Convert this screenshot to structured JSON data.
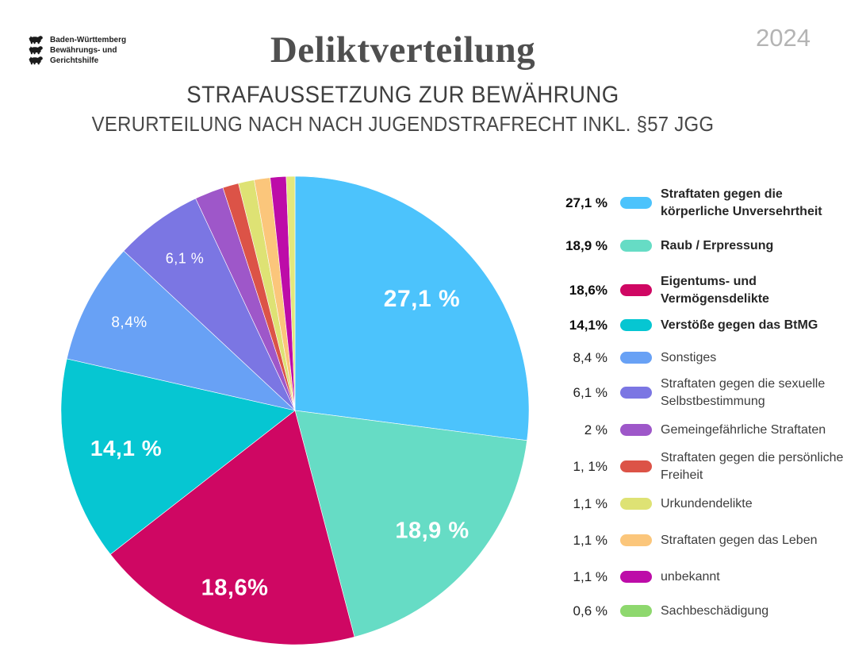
{
  "header": {
    "logo": {
      "icon": "bw-lion-icon",
      "lines": [
        "Baden-Württemberg",
        "Bewährungs- und",
        "Gerichtshilfe"
      ]
    },
    "title": "Deliktverteilung",
    "subtitle1": "STRAFAUSSETZUNG ZUR BEWÄHRUNG",
    "subtitle2": "VERURTEILUNG NACH NACH JUGENDSTRAFRECHT INKL. §57 JGG",
    "year": "2024"
  },
  "chart_data": {
    "type": "pie",
    "title": "Deliktverteilung",
    "unit": "%",
    "start_angle_deg": 0,
    "direction": "clockwise",
    "legend_position": "right",
    "slices": [
      {
        "label": "Straftaten gegen die körperliche Unversehrtheit",
        "value": 27.1,
        "legend_pct": "27,1 %",
        "legend_lines": [
          "Straftaten gegen die",
          "körperliche Unversehrtheit"
        ],
        "pie_label": "27,1 %",
        "color": "#4cc3fc",
        "emphasis": true
      },
      {
        "label": "Raub / Erpressung",
        "value": 18.9,
        "legend_pct": "18,9 %",
        "legend_lines": [
          "Raub / Erpressung"
        ],
        "pie_label": "18,9 %",
        "color": "#66dcc5",
        "emphasis": true
      },
      {
        "label": "Eigentums- und Vermögensdelikte",
        "value": 18.6,
        "legend_pct": "18,6%",
        "legend_lines": [
          "Eigentums- und",
          "Vermögensdelikte"
        ],
        "pie_label": "18,6%",
        "color": "#cf0763",
        "emphasis": true
      },
      {
        "label": "Verstöße gegen das BtMG",
        "value": 14.1,
        "legend_pct": "14,1%",
        "legend_lines": [
          "Verstöße gegen das BtMG"
        ],
        "pie_label": "14,1 %",
        "color": "#06c6d2",
        "emphasis": true
      },
      {
        "label": "Sonstiges",
        "value": 8.4,
        "legend_pct": "8,4 %",
        "legend_lines": [
          "Sonstiges"
        ],
        "pie_label": "8,4%",
        "color": "#68a1f5",
        "emphasis": false
      },
      {
        "label": "Straftaten gegen die sexuelle Selbstbestimmung",
        "value": 6.1,
        "legend_pct": "6,1 %",
        "legend_lines": [
          "Straftaten gegen die sexuelle",
          "Selbstbestimmung"
        ],
        "pie_label": "6,1 %",
        "color": "#7b76e3",
        "emphasis": false
      },
      {
        "label": "Gemeingefährliche Straftaten",
        "value": 2,
        "legend_pct": "2 %",
        "legend_lines": [
          "Gemeingefährliche Straftaten"
        ],
        "pie_label": null,
        "color": "#9e57c9",
        "emphasis": false
      },
      {
        "label": "Straftaten gegen die persönliche Freiheit",
        "value": 1.1,
        "legend_pct": "1, 1%",
        "legend_lines": [
          "Straftaten gegen die persönliche",
          "Freiheit"
        ],
        "pie_label": null,
        "color": "#dc5347",
        "emphasis": false
      },
      {
        "label": "Urkundendelikte",
        "value": 1.1,
        "legend_pct": "1,1 %",
        "legend_lines": [
          "Urkundendelikte"
        ],
        "pie_label": null,
        "color": "#dee274",
        "emphasis": false
      },
      {
        "label": "Straftaten gegen das Leben",
        "value": 1.1,
        "legend_pct": "1,1 %",
        "legend_lines": [
          "Straftaten gegen das Leben"
        ],
        "pie_label": null,
        "color": "#fbc67b",
        "emphasis": false
      },
      {
        "label": "unbekannt",
        "value": 1.1,
        "legend_pct": "1,1 %",
        "legend_lines": [
          "unbekannt"
        ],
        "pie_label": null,
        "color": "#bd0ca8",
        "emphasis": false
      },
      {
        "label": "Sachbeschädigung",
        "value": 0.6,
        "legend_pct": "0,6 %",
        "legend_lines": [
          "Sachbeschädigung"
        ],
        "pie_label": null,
        "color": "#8ed86e",
        "pie_color": "#e3e87c",
        "emphasis": false
      }
    ]
  }
}
